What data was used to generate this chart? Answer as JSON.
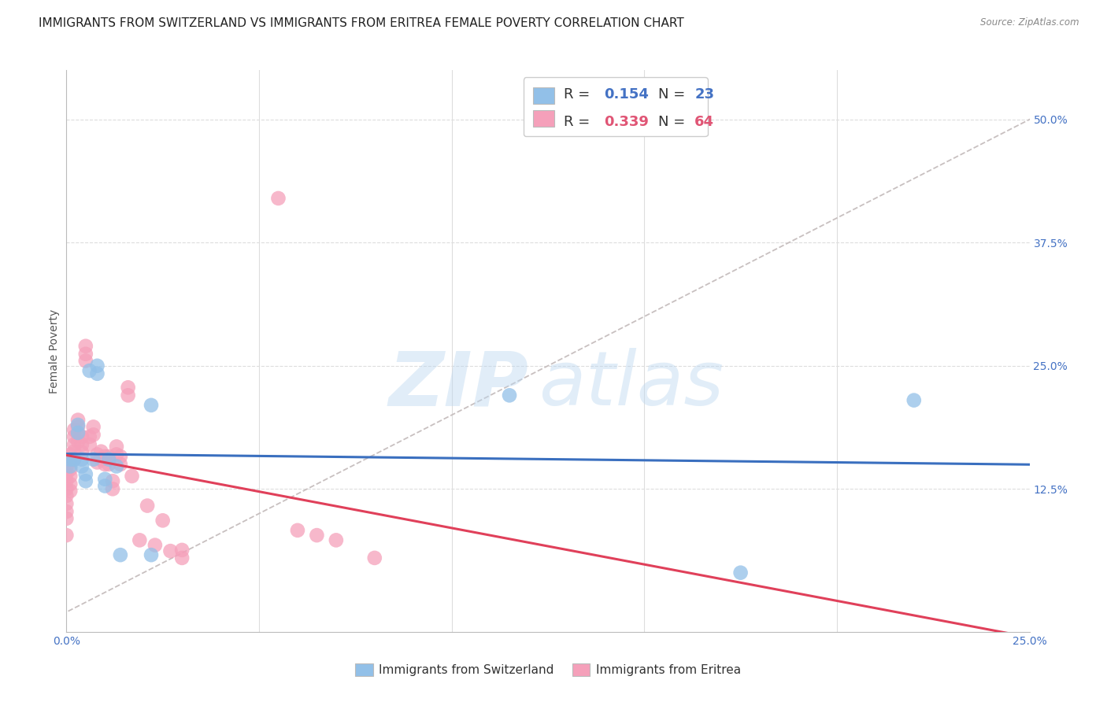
{
  "title": "IMMIGRANTS FROM SWITZERLAND VS IMMIGRANTS FROM ERITREA FEMALE POVERTY CORRELATION CHART",
  "source": "Source: ZipAtlas.com",
  "ylabel": "Female Poverty",
  "xlim": [
    0.0,
    0.25
  ],
  "ylim": [
    -0.02,
    0.55
  ],
  "xtick_positions": [
    0.0,
    0.05,
    0.1,
    0.15,
    0.2,
    0.25
  ],
  "xtick_labels": [
    "0.0%",
    "",
    "",
    "",
    "",
    "25.0%"
  ],
  "ytick_vals_right": [
    0.125,
    0.25,
    0.375,
    0.5
  ],
  "ytick_labels_right": [
    "12.5%",
    "25.0%",
    "37.5%",
    "50.0%"
  ],
  "blue_color": "#92C0E8",
  "pink_color": "#F5A0BA",
  "blue_line_color": "#3A6FBF",
  "pink_line_color": "#E0405A",
  "diagonal_color": "#C8C0C0",
  "background_color": "#FFFFFF",
  "grid_color": "#DDDDDD",
  "watermark_zip": "ZIP",
  "watermark_atlas": "atlas",
  "title_fontsize": 11,
  "axis_fontsize": 10,
  "tick_fontsize": 10,
  "legend_fontsize": 12,
  "switzerland_x": [
    0.001,
    0.001,
    0.002,
    0.003,
    0.003,
    0.004,
    0.004,
    0.005,
    0.005,
    0.006,
    0.007,
    0.008,
    0.008,
    0.01,
    0.01,
    0.011,
    0.013,
    0.014,
    0.022,
    0.022,
    0.115,
    0.175,
    0.22
  ],
  "switzerland_y": [
    0.155,
    0.148,
    0.155,
    0.19,
    0.182,
    0.155,
    0.148,
    0.14,
    0.133,
    0.245,
    0.155,
    0.25,
    0.242,
    0.135,
    0.128,
    0.155,
    0.148,
    0.058,
    0.21,
    0.058,
    0.22,
    0.04,
    0.215
  ],
  "eritrea_x": [
    0.0,
    0.0,
    0.0,
    0.0,
    0.0,
    0.0,
    0.0,
    0.0,
    0.0,
    0.0,
    0.001,
    0.001,
    0.001,
    0.001,
    0.001,
    0.001,
    0.002,
    0.002,
    0.002,
    0.002,
    0.002,
    0.003,
    0.003,
    0.003,
    0.003,
    0.004,
    0.004,
    0.004,
    0.005,
    0.005,
    0.005,
    0.006,
    0.006,
    0.007,
    0.007,
    0.008,
    0.008,
    0.009,
    0.009,
    0.01,
    0.01,
    0.011,
    0.011,
    0.012,
    0.012,
    0.013,
    0.013,
    0.014,
    0.014,
    0.016,
    0.016,
    0.017,
    0.019,
    0.021,
    0.023,
    0.025,
    0.027,
    0.03,
    0.03,
    0.055,
    0.06,
    0.065,
    0.07,
    0.08
  ],
  "eritrea_y": [
    0.155,
    0.148,
    0.14,
    0.133,
    0.125,
    0.118,
    0.11,
    0.102,
    0.095,
    0.078,
    0.16,
    0.153,
    0.145,
    0.138,
    0.13,
    0.123,
    0.185,
    0.178,
    0.17,
    0.163,
    0.155,
    0.195,
    0.188,
    0.18,
    0.173,
    0.178,
    0.17,
    0.162,
    0.27,
    0.262,
    0.255,
    0.178,
    0.17,
    0.188,
    0.18,
    0.16,
    0.152,
    0.163,
    0.155,
    0.158,
    0.15,
    0.158,
    0.15,
    0.133,
    0.125,
    0.168,
    0.16,
    0.158,
    0.15,
    0.228,
    0.22,
    0.138,
    0.073,
    0.108,
    0.068,
    0.093,
    0.062,
    0.063,
    0.055,
    0.42,
    0.083,
    0.078,
    0.073,
    0.055
  ]
}
